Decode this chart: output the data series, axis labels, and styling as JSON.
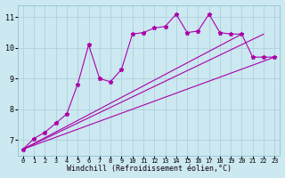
{
  "background_color": "#cce8f0",
  "grid_color": "#aaccdd",
  "line_color": "#aa00aa",
  "marker": "*",
  "markersize": 3.5,
  "linewidth": 0.8,
  "xlabel": "Windchill (Refroidissement éolien,°C)",
  "xlabel_fontsize": 6.0,
  "ylabel_ticks": [
    7,
    8,
    9,
    10,
    11
  ],
  "xlim": [
    -0.5,
    23.5
  ],
  "ylim": [
    6.5,
    11.4
  ],
  "x_ticks": [
    0,
    1,
    2,
    3,
    4,
    5,
    6,
    7,
    8,
    9,
    10,
    11,
    12,
    13,
    14,
    15,
    16,
    17,
    18,
    19,
    20,
    21,
    22,
    23
  ],
  "line1": {
    "x": [
      0,
      23
    ],
    "y": [
      6.7,
      9.7
    ]
  },
  "line2": {
    "x": [
      0,
      22
    ],
    "y": [
      6.7,
      10.45
    ]
  },
  "line3": {
    "x": [
      0,
      20
    ],
    "y": [
      6.7,
      10.45
    ]
  },
  "line4_x": [
    0,
    1,
    2,
    3,
    4,
    5,
    6,
    7,
    8,
    9,
    10,
    11,
    12,
    13,
    14,
    15,
    16,
    17,
    18,
    19,
    20,
    21,
    22,
    23
  ],
  "line4_y": [
    6.7,
    7.05,
    7.25,
    7.55,
    7.85,
    8.82,
    10.1,
    9.0,
    8.9,
    9.3,
    10.45,
    10.5,
    10.65,
    10.7,
    11.1,
    10.5,
    10.55,
    11.1,
    10.5,
    10.45,
    10.45,
    9.7,
    9.7,
    9.7
  ]
}
